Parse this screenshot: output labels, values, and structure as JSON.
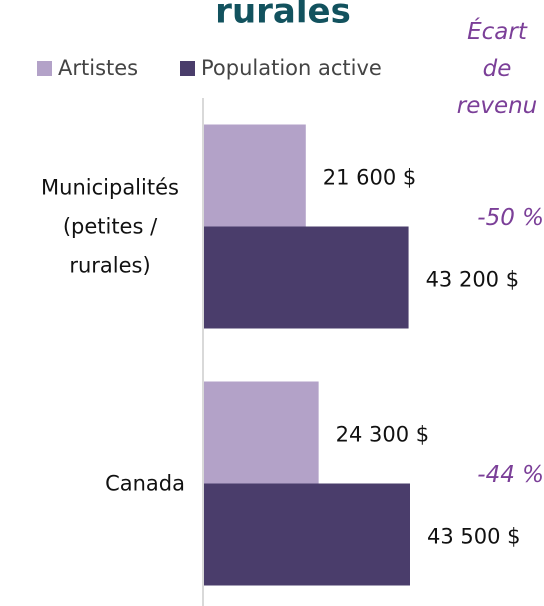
{
  "chart_data": {
    "type": "hbar",
    "title": "rurales",
    "categories": [
      "Municipalités (petites / rurales)",
      "Canada"
    ],
    "series": [
      {
        "name": "Artistes",
        "color": "#b3a2c8",
        "values": [
          21600,
          24300
        ],
        "value_labels": [
          "21 600 $",
          "24 300 $"
        ]
      },
      {
        "name": "Population active",
        "color": "#4a3d6b",
        "values": [
          43200,
          43500
        ],
        "value_labels": [
          "43 200 $",
          "43 500 $"
        ]
      }
    ],
    "annotation": "Écart de revenu",
    "gap_labels": [
      "-50 %",
      "-44 %"
    ],
    "gap_color": "#7b3f98"
  }
}
